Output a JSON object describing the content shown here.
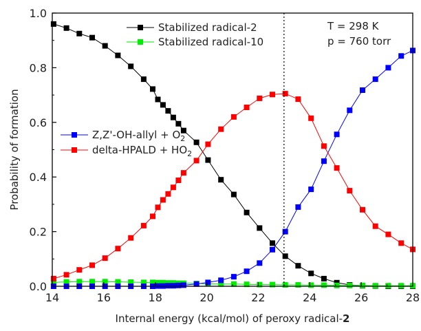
{
  "chart_data": {
    "type": "line",
    "xlabel": "Internal energy (kcal/mol) of peroxy radical-",
    "xlabel_bold": "2",
    "ylabel": "Probability of formation",
    "xlim": [
      14,
      28
    ],
    "ylim": [
      0.0,
      1.0
    ],
    "xticks": [
      "14",
      "16",
      "18",
      "20",
      "22",
      "24",
      "26",
      "28"
    ],
    "yticks": [
      "0.0",
      "0.2",
      "0.4",
      "0.6",
      "0.8",
      "1.0"
    ],
    "grid": false,
    "vline_x": 23.0,
    "annotations": {
      "temperature": "T = 298 K",
      "pressure": "p = 760 torr"
    },
    "legend_top": [
      {
        "name": "Stabilized radical-2",
        "color": "#000000"
      },
      {
        "name": "Stabilized radical-10",
        "color": "#00ee00"
      }
    ],
    "legend_left": [
      {
        "text": "Z,Z'-OH-allyl + O",
        "sub": "2",
        "color": "#0000ff"
      },
      {
        "text": "delta-HPALD + HO",
        "sub": "2",
        "color": "#ff0000"
      }
    ],
    "series": [
      {
        "name": "Stabilized radical-2",
        "color": "#000000",
        "x": [
          14.05,
          14.55,
          15.05,
          15.55,
          16.05,
          16.55,
          17.05,
          17.55,
          17.9,
          18.1,
          18.3,
          18.5,
          18.7,
          18.9,
          19.1,
          19.6,
          20.05,
          20.55,
          21.05,
          21.55,
          22.05,
          22.55,
          23.05,
          23.55,
          24.05,
          24.55,
          25.05,
          25.55,
          26.05,
          26.55,
          27.05,
          27.55,
          28.0
        ],
        "y": [
          0.96,
          0.945,
          0.925,
          0.91,
          0.88,
          0.845,
          0.805,
          0.758,
          0.722,
          0.684,
          0.664,
          0.642,
          0.618,
          0.595,
          0.57,
          0.527,
          0.462,
          0.39,
          0.336,
          0.27,
          0.213,
          0.158,
          0.11,
          0.075,
          0.047,
          0.028,
          0.013,
          0.005,
          0.002,
          0.001,
          0.0,
          0.0,
          0.0
        ]
      },
      {
        "name": "Stabilized radical-10",
        "color": "#00ee00",
        "x": [
          14.05,
          14.55,
          15.05,
          15.55,
          16.05,
          16.55,
          17.05,
          17.55,
          17.9,
          18.1,
          18.3,
          18.5,
          18.7,
          18.9,
          19.1,
          19.6,
          20.05,
          20.55,
          21.05,
          21.55,
          22.05,
          22.55,
          23.05,
          23.55,
          24.05,
          24.55,
          25.05,
          25.55,
          26.05,
          26.55,
          27.05,
          27.55,
          28.0
        ],
        "y": [
          0.014,
          0.016,
          0.017,
          0.017,
          0.017,
          0.016,
          0.015,
          0.014,
          0.014,
          0.013,
          0.013,
          0.012,
          0.012,
          0.011,
          0.011,
          0.01,
          0.009,
          0.008,
          0.008,
          0.007,
          0.006,
          0.006,
          0.005,
          0.005,
          0.004,
          0.004,
          0.003,
          0.003,
          0.003,
          0.002,
          0.002,
          0.002,
          0.002
        ]
      },
      {
        "name": "Z,Z'-OH-allyl + O2",
        "color": "#0000ff",
        "x": [
          14.05,
          14.55,
          15.05,
          15.55,
          16.05,
          16.55,
          17.05,
          17.55,
          17.9,
          18.1,
          18.3,
          18.5,
          18.7,
          18.9,
          19.1,
          19.6,
          20.05,
          20.55,
          21.05,
          21.55,
          22.05,
          22.55,
          23.05,
          23.55,
          24.05,
          24.55,
          25.05,
          25.55,
          26.05,
          26.55,
          27.05,
          27.55,
          28.0
        ],
        "y": [
          0.0,
          0.0,
          0.0,
          0.0,
          0.0,
          0.0,
          0.0,
          0.0,
          0.0,
          0.001,
          0.001,
          0.002,
          0.002,
          0.003,
          0.004,
          0.008,
          0.014,
          0.022,
          0.035,
          0.055,
          0.085,
          0.134,
          0.2,
          0.29,
          0.355,
          0.458,
          0.556,
          0.644,
          0.718,
          0.758,
          0.8,
          0.843,
          0.863
        ]
      },
      {
        "name": "delta-HPALD + HO2",
        "color": "#ff0000",
        "x": [
          14.05,
          14.55,
          15.05,
          15.55,
          16.05,
          16.55,
          17.05,
          17.55,
          17.9,
          18.1,
          18.3,
          18.5,
          18.7,
          18.9,
          19.1,
          19.6,
          20.05,
          20.55,
          21.05,
          21.55,
          22.05,
          22.55,
          23.05,
          23.55,
          24.05,
          24.55,
          25.05,
          25.55,
          26.05,
          26.55,
          27.05,
          27.55,
          28.0
        ],
        "y": [
          0.028,
          0.042,
          0.06,
          0.077,
          0.103,
          0.138,
          0.177,
          0.222,
          0.256,
          0.289,
          0.316,
          0.338,
          0.362,
          0.388,
          0.415,
          0.46,
          0.52,
          0.575,
          0.62,
          0.655,
          0.688,
          0.702,
          0.705,
          0.685,
          0.615,
          0.513,
          0.433,
          0.35,
          0.28,
          0.22,
          0.19,
          0.158,
          0.135
        ]
      }
    ]
  }
}
